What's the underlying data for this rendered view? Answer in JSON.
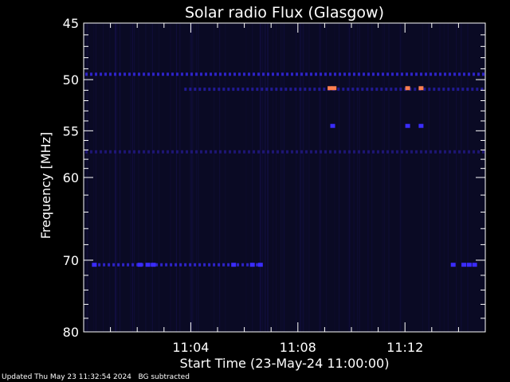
{
  "chart_data": {
    "type": "heatmap",
    "title": "Solar radio Flux (Glasgow)",
    "xlabel": "Start Time (23-May-24 11:00:00)",
    "ylabel": "Frequency [MHz]",
    "x_unit": "minutes after 11:00",
    "xlim": [
      0,
      15
    ],
    "ylim": [
      80,
      45
    ],
    "y_scale": "log",
    "x_ticks": [
      {
        "value": 4,
        "label": "11:04"
      },
      {
        "value": 8,
        "label": "11:08"
      },
      {
        "value": 12,
        "label": "11:12"
      }
    ],
    "y_ticks": [
      {
        "value": 45,
        "label": "45"
      },
      {
        "value": 50,
        "label": "50"
      },
      {
        "value": 55,
        "label": "55"
      },
      {
        "value": 60,
        "label": "60"
      },
      {
        "value": 70,
        "label": "70"
      },
      {
        "value": 80,
        "label": "80"
      }
    ],
    "background_color": "#0a0a24",
    "features": [
      {
        "kind": "interference-band",
        "freq_mhz": 49.5,
        "x_range": [
          0,
          15
        ],
        "color": "#3a2cff"
      },
      {
        "kind": "interference-band",
        "freq_mhz": 50.9,
        "x_range": [
          3.7,
          15
        ],
        "color": "#2a20b8"
      },
      {
        "kind": "interference-band",
        "freq_mhz": 57.2,
        "x_range": [
          0,
          15
        ],
        "color": "#241a8c"
      },
      {
        "kind": "interference-band",
        "freq_mhz": 70.6,
        "x_range": [
          0.3,
          6.7
        ],
        "color": "#3a2cff"
      },
      {
        "kind": "hot-spot",
        "freq_mhz": 50.8,
        "times": [
          9.2,
          9.35,
          12.1,
          12.6
        ],
        "color": "#ff7f50"
      },
      {
        "kind": "spot",
        "freq_mhz": 54.5,
        "times": [
          9.3,
          12.1,
          12.6
        ],
        "color": "#3a2cff"
      },
      {
        "kind": "spot",
        "freq_mhz": 70.6,
        "times": [
          0.4,
          2.1,
          2.4,
          2.6,
          5.6,
          6.3,
          6.6,
          13.8,
          14.2,
          14.4,
          14.6
        ],
        "color": "#3a2cff"
      }
    ]
  },
  "footer": {
    "updated": "Updated Thu May 23 11:32:54 2024",
    "note": "BG subtracted"
  }
}
